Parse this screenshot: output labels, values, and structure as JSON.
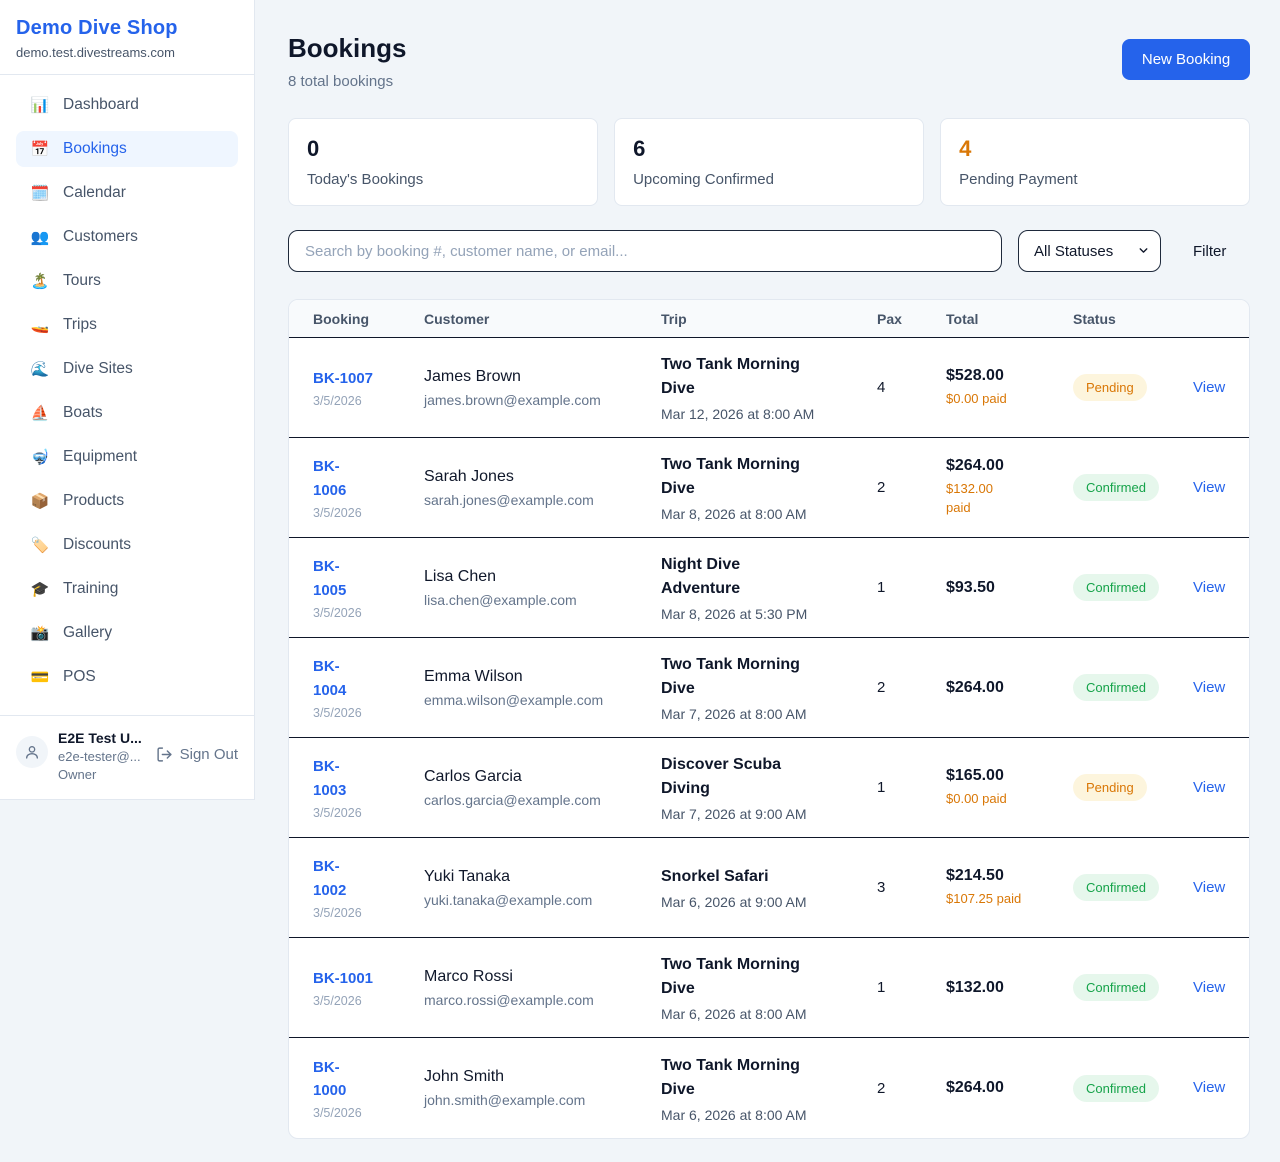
{
  "colors": {
    "accent_blue": "#2563eb",
    "pending_orange": "#d97706",
    "confirmed_green": "#16a34a",
    "pending_badge_bg": "#fdf5dd",
    "confirmed_badge_bg": "#e6f7ec"
  },
  "sidebar": {
    "brand": {
      "name": "Demo Dive Shop",
      "domain": "demo.test.divestreams.com"
    },
    "items": [
      {
        "label": "Dashboard",
        "icon": "📊",
        "active": false
      },
      {
        "label": "Bookings",
        "icon": "📅",
        "active": true
      },
      {
        "label": "Calendar",
        "icon": "🗓️",
        "active": false
      },
      {
        "label": "Customers",
        "icon": "👥",
        "active": false
      },
      {
        "label": "Tours",
        "icon": "🏝️",
        "active": false
      },
      {
        "label": "Trips",
        "icon": "🚤",
        "active": false
      },
      {
        "label": "Dive Sites",
        "icon": "🌊",
        "active": false
      },
      {
        "label": "Boats",
        "icon": "⛵",
        "active": false
      },
      {
        "label": "Equipment",
        "icon": "🤿",
        "active": false
      },
      {
        "label": "Products",
        "icon": "📦",
        "active": false
      },
      {
        "label": "Discounts",
        "icon": "🏷️",
        "active": false
      },
      {
        "label": "Training",
        "icon": "🎓",
        "active": false
      },
      {
        "label": "Gallery",
        "icon": "📸",
        "active": false
      },
      {
        "label": "POS",
        "icon": "💳",
        "active": false
      }
    ],
    "user": {
      "name": "E2E Test U...",
      "email": "e2e-tester@...",
      "role": "Owner",
      "signout_label": "Sign Out"
    }
  },
  "header": {
    "title": "Bookings",
    "subtitle": "8 total bookings",
    "new_booking_label": "New Booking"
  },
  "stats": [
    {
      "value": "0",
      "label": "Today's Bookings",
      "accent": false
    },
    {
      "value": "6",
      "label": "Upcoming Confirmed",
      "accent": false
    },
    {
      "value": "4",
      "label": "Pending Payment",
      "accent": true
    }
  ],
  "filters": {
    "search_placeholder": "Search by booking #, customer name, or email...",
    "status_selected": "All Statuses",
    "filter_label": "Filter"
  },
  "table": {
    "columns": [
      "Booking",
      "Customer",
      "Trip",
      "Pax",
      "Total",
      "Status"
    ],
    "view_label": "View",
    "rows": [
      {
        "id": "BK-1007",
        "id_wrap": false,
        "date": "3/5/2026",
        "customer": "James Brown",
        "email": "james.brown@example.com",
        "trip": "Two Tank Morning Dive",
        "trip_datetime": "Mar 12, 2026 at 8:00 AM",
        "pax": "4",
        "total": "$528.00",
        "paid": "$0.00 paid",
        "paid_wrap": false,
        "status": "Pending"
      },
      {
        "id": "BK-1006",
        "id_wrap": true,
        "date": "3/5/2026",
        "customer": "Sarah Jones",
        "email": "sarah.jones@example.com",
        "trip": "Two Tank Morning Dive",
        "trip_datetime": "Mar 8, 2026 at 8:00 AM",
        "pax": "2",
        "total": "$264.00",
        "paid": "$132.00 paid",
        "paid_wrap": true,
        "status": "Confirmed"
      },
      {
        "id": "BK-1005",
        "id_wrap": true,
        "date": "3/5/2026",
        "customer": "Lisa Chen",
        "email": "lisa.chen@example.com",
        "trip": "Night Dive Adventure",
        "trip_datetime": "Mar 8, 2026 at 5:30 PM",
        "pax": "1",
        "total": "$93.50",
        "paid": "",
        "paid_wrap": false,
        "status": "Confirmed"
      },
      {
        "id": "BK-1004",
        "id_wrap": true,
        "date": "3/5/2026",
        "customer": "Emma Wilson",
        "email": "emma.wilson@example.com",
        "trip": "Two Tank Morning Dive",
        "trip_datetime": "Mar 7, 2026 at 8:00 AM",
        "pax": "2",
        "total": "$264.00",
        "paid": "",
        "paid_wrap": false,
        "status": "Confirmed"
      },
      {
        "id": "BK-1003",
        "id_wrap": true,
        "date": "3/5/2026",
        "customer": "Carlos Garcia",
        "email": "carlos.garcia@example.com",
        "trip": "Discover Scuba Diving",
        "trip_datetime": "Mar 7, 2026 at 9:00 AM",
        "pax": "1",
        "total": "$165.00",
        "paid": "$0.00 paid",
        "paid_wrap": false,
        "status": "Pending"
      },
      {
        "id": "BK-1002",
        "id_wrap": true,
        "date": "3/5/2026",
        "customer": "Yuki Tanaka",
        "email": "yuki.tanaka@example.com",
        "trip": "Snorkel Safari",
        "trip_datetime": "Mar 6, 2026 at 9:00 AM",
        "pax": "3",
        "total": "$214.50",
        "paid": "$107.25 paid",
        "paid_wrap": false,
        "status": "Confirmed"
      },
      {
        "id": "BK-1001",
        "id_wrap": false,
        "date": "3/5/2026",
        "customer": "Marco Rossi",
        "email": "marco.rossi@example.com",
        "trip": "Two Tank Morning Dive",
        "trip_datetime": "Mar 6, 2026 at 8:00 AM",
        "pax": "1",
        "total": "$132.00",
        "paid": "",
        "paid_wrap": false,
        "status": "Confirmed"
      },
      {
        "id": "BK-1000",
        "id_wrap": true,
        "date": "3/5/2026",
        "customer": "John Smith",
        "email": "john.smith@example.com",
        "trip": "Two Tank Morning Dive",
        "trip_datetime": "Mar 6, 2026 at 8:00 AM",
        "pax": "2",
        "total": "$264.00",
        "paid": "",
        "paid_wrap": false,
        "status": "Confirmed"
      }
    ]
  }
}
